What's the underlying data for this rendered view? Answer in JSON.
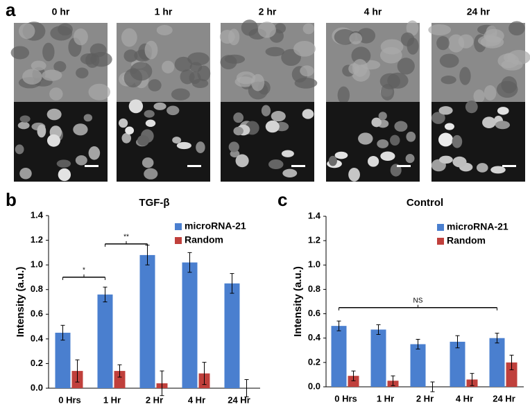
{
  "panel_a": {
    "label": "a",
    "timepoints": [
      "0 hr",
      "1 hr",
      "2 hr",
      "4 hr",
      "24 hr"
    ]
  },
  "chart_data": [
    {
      "type": "bar",
      "panel_label": "b",
      "title": "TGF-β",
      "y_label": "Intensity (a.u.)",
      "categories": [
        "0 Hrs",
        "1 Hr",
        "2 Hr",
        "4 Hr",
        "24 Hr"
      ],
      "series": [
        {
          "name": "microRNA-21",
          "color": "#4a7fcf",
          "values": [
            0.45,
            0.76,
            1.08,
            1.02,
            0.85
          ],
          "errors": [
            0.06,
            0.06,
            0.08,
            0.08,
            0.08
          ]
        },
        {
          "name": "Random",
          "color": "#c0403c",
          "values": [
            0.14,
            0.14,
            0.04,
            0.12,
            0.0
          ],
          "errors": [
            0.09,
            0.05,
            0.1,
            0.09,
            0.07
          ]
        }
      ],
      "ylim": [
        0,
        1.4
      ],
      "yticks": [
        {
          "value": 0,
          "label": "0.0"
        },
        0.2,
        0.4,
        0.6,
        0.8,
        {
          "value": 1,
          "label": "1.0"
        },
        1.2,
        1.4
      ],
      "legend": "upper right",
      "annotations": [
        {
          "text": "*",
          "y": 0.9,
          "span": [
            0,
            1
          ]
        },
        {
          "text": "**",
          "y": 1.17,
          "span": [
            1,
            2
          ]
        }
      ]
    },
    {
      "type": "bar",
      "panel_label": "c",
      "title": "Control",
      "y_label": "Intensity (a.u.)",
      "categories": [
        "0 Hrs",
        "1 Hr",
        "2 Hr",
        "4 Hr",
        "24 Hr"
      ],
      "series": [
        {
          "name": "microRNA-21",
          "color": "#4a7fcf",
          "values": [
            0.5,
            0.47,
            0.35,
            0.37,
            0.4
          ],
          "errors": [
            0.04,
            0.04,
            0.04,
            0.05,
            0.04
          ]
        },
        {
          "name": "Random",
          "color": "#c0403c",
          "values": [
            0.09,
            0.05,
            0.0,
            0.06,
            0.2
          ],
          "errors": [
            0.04,
            0.04,
            0.04,
            0.05,
            0.06
          ]
        }
      ],
      "ylim": [
        0,
        1.4
      ],
      "yticks": [
        {
          "value": 0,
          "label": "0.0"
        },
        0.2,
        0.4,
        0.6,
        0.8,
        {
          "value": 1,
          "label": "1.0"
        },
        1.2,
        1.4
      ],
      "legend": "upper right",
      "annotations": [
        {
          "text": "NS",
          "y": 0.65,
          "span": [
            0,
            4
          ]
        }
      ]
    }
  ]
}
